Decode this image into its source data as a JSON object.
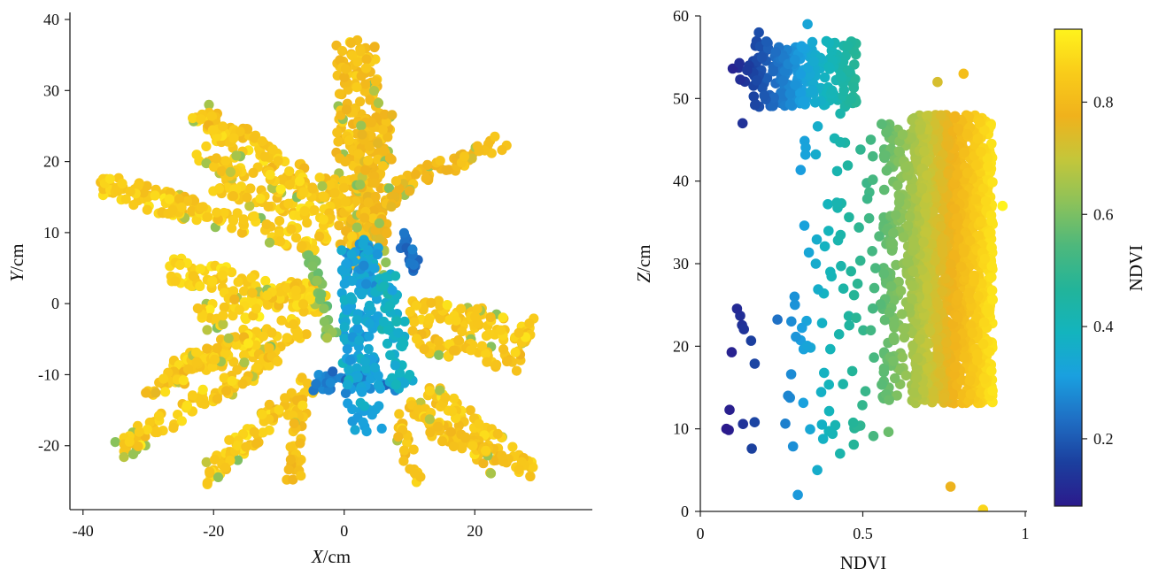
{
  "chart_data": [
    {
      "type": "scatter",
      "panel": "left",
      "xlabel_var": "X",
      "xlabel_unit": "/cm",
      "ylabel_var": "Y",
      "ylabel_unit": "/cm",
      "xlim": [
        -42,
        38
      ],
      "ylim": [
        -29,
        41
      ],
      "xticks": [
        -40,
        -20,
        0,
        20
      ],
      "yticks": [
        -20,
        -10,
        0,
        10,
        20,
        30,
        40
      ],
      "color_variable": "NDVI",
      "description_of_points": "plant point cloud; leaves yellow-orange (NDVI 0.7-0.9), central stem region blue (NDVI 0.2-0.4)",
      "stroke_segments": [
        {
          "from": [
            2,
            37
          ],
          "to": [
            2,
            8
          ],
          "width": 5.5,
          "ndvi": 0.82
        },
        {
          "from": [
            5,
            27
          ],
          "to": [
            4,
            4
          ],
          "width": 4.5,
          "ndvi": 0.8
        },
        {
          "from": [
            -23,
            27
          ],
          "to": [
            1,
            14
          ],
          "width": 3.2,
          "ndvi": 0.84
        },
        {
          "from": [
            -38,
            17
          ],
          "to": [
            -3,
            8
          ],
          "width": 3.2,
          "ndvi": 0.85
        },
        {
          "from": [
            -20,
            17
          ],
          "to": [
            -2,
            12
          ],
          "width": 2.8,
          "ndvi": 0.85
        },
        {
          "from": [
            -22,
            21
          ],
          "to": [
            -3,
            15
          ],
          "width": 2.4,
          "ndvi": 0.84
        },
        {
          "from": [
            25,
            23
          ],
          "to": [
            9,
            17
          ],
          "width": 2.2,
          "ndvi": 0.8
        },
        {
          "from": [
            9,
            17
          ],
          "to": [
            5,
            9
          ],
          "width": 2.2,
          "ndvi": 0.78
        },
        {
          "from": [
            -27,
            5
          ],
          "to": [
            -3,
            0
          ],
          "width": 3.2,
          "ndvi": 0.86
        },
        {
          "from": [
            -22,
            -2
          ],
          "to": [
            -4,
            2
          ],
          "width": 3.2,
          "ndvi": 0.86
        },
        {
          "from": [
            -27,
            -10
          ],
          "to": [
            -6,
            -3
          ],
          "width": 3.0,
          "ndvi": 0.85
        },
        {
          "from": [
            -35,
            -21
          ],
          "to": [
            -10,
            -7
          ],
          "width": 2.6,
          "ndvi": 0.84
        },
        {
          "from": [
            -31,
            -13
          ],
          "to": [
            -12,
            -3
          ],
          "width": 2.4,
          "ndvi": 0.84
        },
        {
          "from": [
            -22,
            -25
          ],
          "to": [
            -5,
            -11
          ],
          "width": 2.8,
          "ndvi": 0.84
        },
        {
          "from": [
            -8,
            -25
          ],
          "to": [
            -6,
            -11
          ],
          "width": 2.0,
          "ndvi": 0.82
        },
        {
          "from": [
            10,
            -1
          ],
          "to": [
            29,
            -4
          ],
          "width": 3.4,
          "ndvi": 0.84
        },
        {
          "from": [
            10,
            -5
          ],
          "to": [
            27,
            -8
          ],
          "width": 2.6,
          "ndvi": 0.83
        },
        {
          "from": [
            13,
            -12
          ],
          "to": [
            29,
            -24
          ],
          "width": 2.4,
          "ndvi": 0.84
        },
        {
          "from": [
            10,
            -14
          ],
          "to": [
            23,
            -23
          ],
          "width": 2.2,
          "ndvi": 0.83
        },
        {
          "from": [
            12,
            -17
          ],
          "to": [
            28,
            -23
          ],
          "width": 2.0,
          "ndvi": 0.83
        },
        {
          "from": [
            8,
            -15
          ],
          "to": [
            11,
            -25
          ],
          "width": 1.6,
          "ndvi": 0.82
        },
        {
          "from": [
            -5,
            -11
          ],
          "to": [
            9,
            -11
          ],
          "width": 2.0,
          "ndvi": 0.26
        },
        {
          "from": [
            2,
            9
          ],
          "to": [
            3,
            -18
          ],
          "width": 5.0,
          "ndvi": 0.33
        },
        {
          "from": [
            6,
            4
          ],
          "to": [
            9,
            -12
          ],
          "width": 3.0,
          "ndvi": 0.37
        },
        {
          "from": [
            9,
            10
          ],
          "to": [
            11,
            5
          ],
          "width": 1.5,
          "ndvi": 0.24
        },
        {
          "from": [
            -5,
            7
          ],
          "to": [
            -2,
            -5
          ],
          "width": 1.5,
          "ndvi": 0.6
        }
      ]
    },
    {
      "type": "scatter",
      "panel": "right",
      "xlabel": "NDVI",
      "ylabel_var": "Z",
      "ylabel_unit": "/cm",
      "xlim": [
        0,
        1
      ],
      "ylim": [
        0,
        60
      ],
      "xticks": [
        0,
        0.5,
        1
      ],
      "yticks": [
        0,
        10,
        20,
        30,
        40,
        50,
        60
      ],
      "color_variable": "NDVI",
      "groups": [
        {
          "x_range": [
            0.16,
            0.48
          ],
          "y_range": [
            49,
            57
          ],
          "count": 220
        },
        {
          "x_range": [
            0.08,
            0.2
          ],
          "y_range": [
            52,
            55
          ],
          "count": 14
        },
        {
          "x_range": [
            0.65,
            0.9
          ],
          "y_range": [
            13,
            48
          ],
          "count": 1400
        },
        {
          "x_range": [
            0.56,
            0.7
          ],
          "y_range": [
            13,
            47
          ],
          "count": 260
        },
        {
          "x_range": [
            0.3,
            0.6
          ],
          "y_range": [
            8,
            50
          ],
          "count": 95
        },
        {
          "x_range": [
            0.07,
            0.34
          ],
          "y_range": [
            7,
            26
          ],
          "count": 22
        }
      ],
      "points": [
        {
          "x": 0.08,
          "y": 10
        },
        {
          "x": 0.3,
          "y": 2
        },
        {
          "x": 0.36,
          "y": 5
        },
        {
          "x": 0.77,
          "y": 3
        },
        {
          "x": 0.87,
          "y": 0.2
        },
        {
          "x": 0.29,
          "y": 26
        },
        {
          "x": 0.93,
          "y": 37
        },
        {
          "x": 0.81,
          "y": 53
        },
        {
          "x": 0.33,
          "y": 59
        },
        {
          "x": 0.18,
          "y": 58
        },
        {
          "x": 0.13,
          "y": 47
        },
        {
          "x": 0.27,
          "y": 14
        },
        {
          "x": 0.43,
          "y": 7
        },
        {
          "x": 0.73,
          "y": 52
        },
        {
          "x": 0.4,
          "y": 29
        }
      ]
    }
  ],
  "colorbar": {
    "label": "NDVI",
    "range": [
      0.08,
      0.93
    ],
    "ticks": [
      0.2,
      0.4,
      0.6,
      0.8
    ],
    "colormap": [
      "#2b1a8c",
      "#1b3f9e",
      "#1f6fc4",
      "#1aa0df",
      "#13b4be",
      "#22b49a",
      "#4db87c",
      "#8cc25a",
      "#c4c63a",
      "#f0b21c",
      "#f9cc1a",
      "#fff31c"
    ]
  }
}
